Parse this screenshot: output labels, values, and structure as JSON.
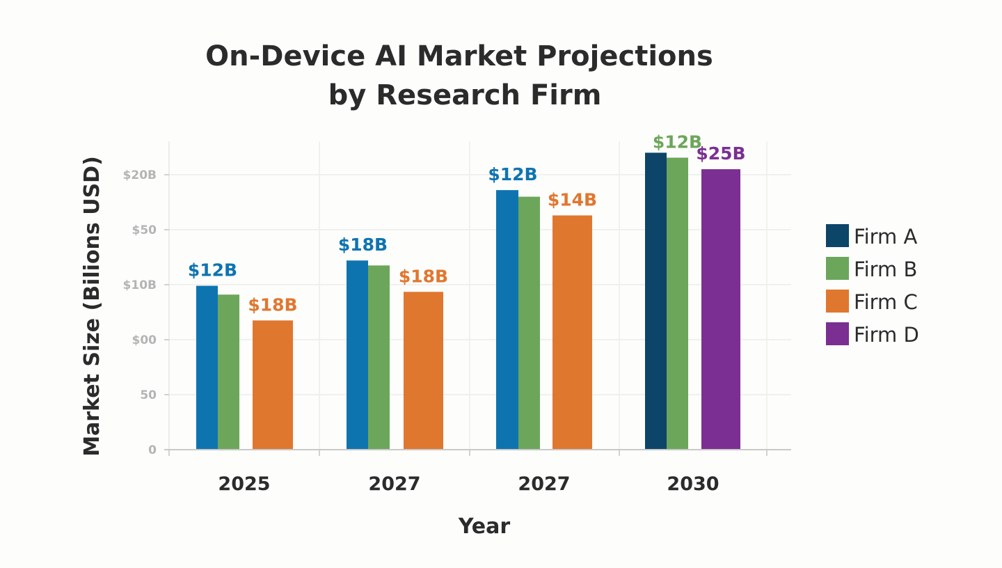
{
  "chart_data": {
    "type": "bar",
    "title": [
      "On-Device AI Market Projections",
      "by Research Firm"
    ],
    "xlabel": "Year",
    "ylabel": "Market Size (Bilions USD)",
    "categories": [
      "2025",
      "2027",
      "2027",
      "2030"
    ],
    "y_ticks": [
      {
        "label": "0",
        "value": 0
      },
      {
        "label": "50",
        "value": 1
      },
      {
        "label": "$00",
        "value": 2
      },
      {
        "label": "$10B",
        "value": 3
      },
      {
        "label": "$50",
        "value": 4
      },
      {
        "label": "$20B",
        "value": 5
      }
    ],
    "ylim": [
      0,
      5.6
    ],
    "grid": true,
    "legend_position": "right",
    "series": [
      {
        "name": "Firm A",
        "color": "#0e74b0",
        "values": [
          2.98,
          3.44,
          4.72,
          5.4
        ]
      },
      {
        "name": "Firm B",
        "color": "#6ca65a",
        "values": [
          2.82,
          3.35,
          4.6,
          5.31
        ]
      },
      {
        "name": "Firm C",
        "color": "#e0772f",
        "values": [
          2.35,
          2.87,
          4.26,
          null
        ]
      },
      {
        "name": "Firm D",
        "color": "#7b2f92",
        "values": [
          null,
          null,
          null,
          5.1
        ]
      }
    ],
    "bar_overrides": [
      {
        "category": 3,
        "series": 0,
        "color": "#0d4569"
      }
    ],
    "data_labels": [
      {
        "category": 0,
        "series": 0,
        "text": "$12B"
      },
      {
        "category": 0,
        "series": 2,
        "text": "$18B"
      },
      {
        "category": 1,
        "series": 0,
        "text": "$18B"
      },
      {
        "category": 1,
        "series": 2,
        "text": "$18B"
      },
      {
        "category": 2,
        "series": 0,
        "text": "$12B"
      },
      {
        "category": 2,
        "series": 2,
        "text": "$14B"
      },
      {
        "category": 3,
        "series": 1,
        "text": "$12B"
      },
      {
        "category": 3,
        "series": 3,
        "text": "$25B"
      }
    ],
    "legend": [
      {
        "name": "Firm A",
        "color": "#0d4569"
      },
      {
        "name": "Firm B",
        "color": "#6ca65a"
      },
      {
        "name": "Firm C",
        "color": "#e0772f"
      },
      {
        "name": "Firm D",
        "color": "#7b2f92"
      }
    ]
  }
}
